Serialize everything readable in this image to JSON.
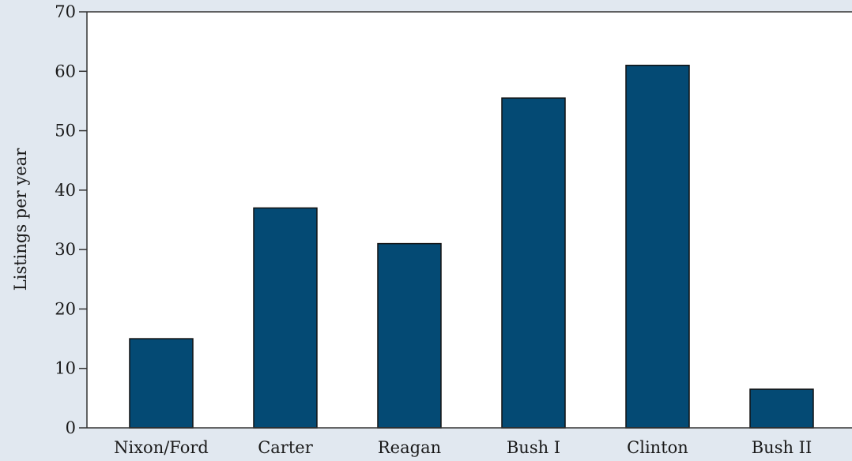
{
  "chart_data": {
    "type": "bar",
    "title": "",
    "xlabel": "",
    "ylabel": "Listings per year",
    "categories": [
      "Nixon/Ford",
      "Carter",
      "Reagan",
      "Bush I",
      "Clinton",
      "Bush II"
    ],
    "values": [
      15,
      37,
      31,
      55.5,
      61,
      6.5
    ],
    "ylim": [
      0,
      70
    ],
    "yticks": [
      "0",
      "10",
      "20",
      "30",
      "40",
      "50",
      "60",
      "70"
    ],
    "grid": false,
    "legend": "none",
    "colors": {
      "bar": "#044a74",
      "bar_edge": "#111111",
      "plot_background": "#ffffff",
      "page_background": "#e1e8f0",
      "axis": "#333333"
    }
  }
}
